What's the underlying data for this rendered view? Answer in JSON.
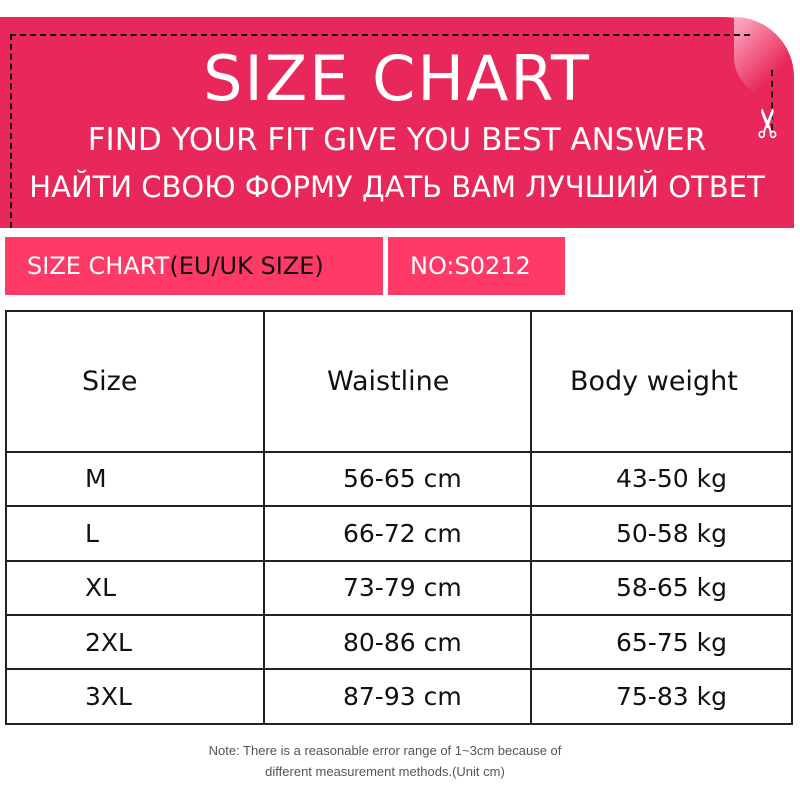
{
  "header": {
    "title": "SIZE  CHART",
    "subtitle_en": "FIND YOUR FIT GIVE YOU BEST ANSWER",
    "subtitle_ru": "НАЙТИ СВОЮ ФОРМУ ДАТЬ ВАМ ЛУЧШИЙ ОТВЕТ",
    "icon": "scissors-icon",
    "color": "#e8285a"
  },
  "labels": {
    "chart_main": "SIZE  CHART",
    "chart_region": "(EU/UK SIZE)",
    "number": "NO:S0212",
    "color": "#ff3a66"
  },
  "table": {
    "headers": [
      "Size",
      "Waistline",
      "Body weight"
    ],
    "rows": [
      [
        "M",
        "56-65 cm",
        "43-50 kg"
      ],
      [
        "L",
        "66-72 cm",
        "50-58 kg"
      ],
      [
        "XL",
        "73-79 cm",
        "58-65 kg"
      ],
      [
        "2XL",
        "80-86 cm",
        "65-75 kg"
      ],
      [
        "3XL",
        "87-93 cm",
        "75-83 kg"
      ]
    ]
  },
  "note": {
    "line1": "Note: There is a reasonable error range of 1~3cm because of",
    "line2": "different measurement methods.(Unit cm)"
  }
}
